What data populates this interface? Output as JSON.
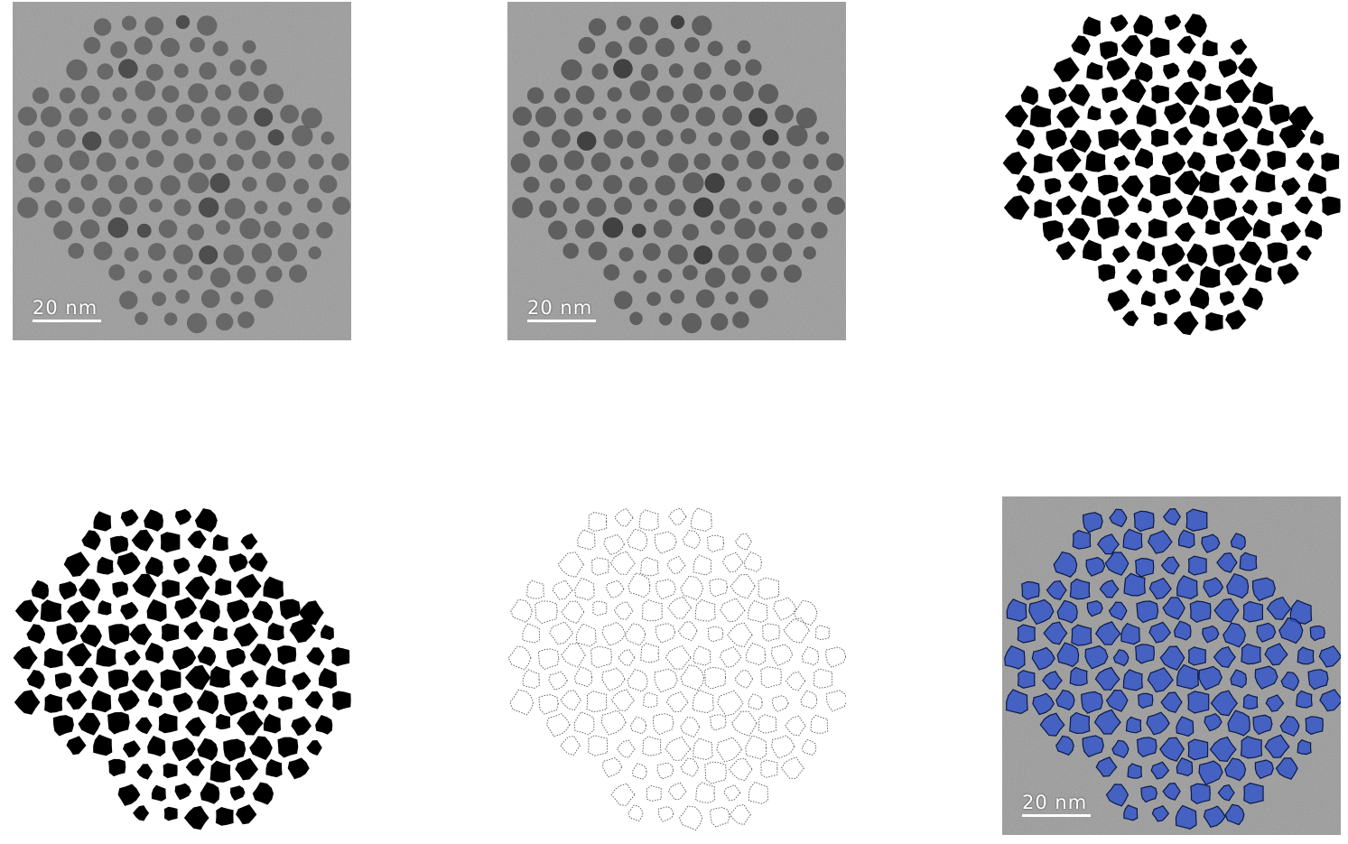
{
  "figure": {
    "panels": [
      {
        "id": "raw",
        "scale_label": "20 nm"
      },
      {
        "id": "filtered",
        "scale_label": "20 nm"
      },
      {
        "id": "binary-mask"
      },
      {
        "id": "binary-mask-cleaned"
      },
      {
        "id": "edge-contours"
      },
      {
        "id": "overlay",
        "scale_label": "20 nm"
      }
    ]
  },
  "colors": {
    "background": "#ffffff",
    "tem_gray": "#9a9a9a",
    "particle_dark": "#4a4a4a",
    "mask_black": "#000000",
    "contour_gray": "#555555",
    "overlay_fill": "#3556c8",
    "overlay_edge": "#0b1a4a"
  }
}
